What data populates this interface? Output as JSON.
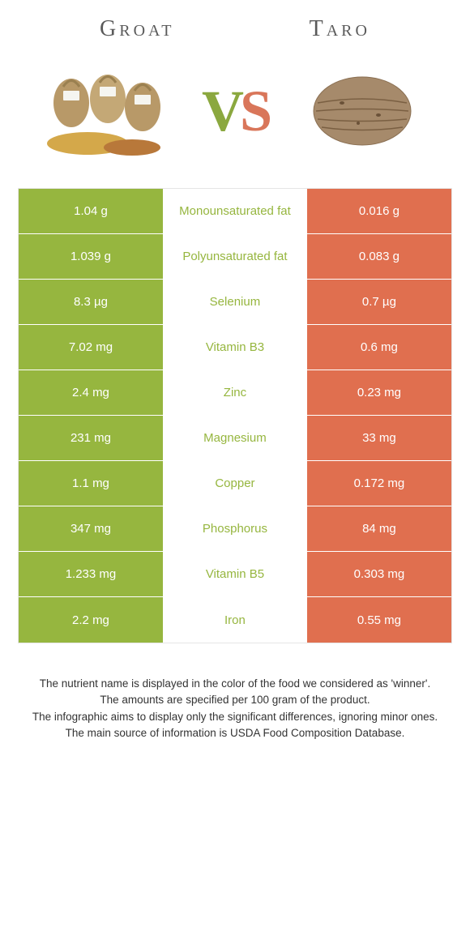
{
  "colors": {
    "left": "#96B63F",
    "right": "#E06F4F",
    "rowBorder": "#ffffff"
  },
  "foods": {
    "left": "Groat",
    "right": "Taro"
  },
  "vs": {
    "v": "V",
    "s": "S"
  },
  "rows": [
    {
      "left": "1.04 g",
      "label": "Monounsaturated fat",
      "right": "0.016 g",
      "winner": "left"
    },
    {
      "left": "1.039 g",
      "label": "Polyunsaturated fat",
      "right": "0.083 g",
      "winner": "left"
    },
    {
      "left": "8.3 µg",
      "label": "Selenium",
      "right": "0.7 µg",
      "winner": "left"
    },
    {
      "left": "7.02 mg",
      "label": "Vitamin B3",
      "right": "0.6 mg",
      "winner": "left"
    },
    {
      "left": "2.4 mg",
      "label": "Zinc",
      "right": "0.23 mg",
      "winner": "left"
    },
    {
      "left": "231 mg",
      "label": "Magnesium",
      "right": "33 mg",
      "winner": "left"
    },
    {
      "left": "1.1 mg",
      "label": "Copper",
      "right": "0.172 mg",
      "winner": "left"
    },
    {
      "left": "347 mg",
      "label": "Phosphorus",
      "right": "84 mg",
      "winner": "left"
    },
    {
      "left": "1.233 mg",
      "label": "Vitamin B5",
      "right": "0.303 mg",
      "winner": "left"
    },
    {
      "left": "2.2 mg",
      "label": "Iron",
      "right": "0.55 mg",
      "winner": "left"
    }
  ],
  "footer": [
    "The nutrient name is displayed in the color of the food we considered as 'winner'.",
    "The amounts are specified per 100 gram of the product.",
    "The infographic aims to display only the significant differences, ignoring minor ones.",
    "The main source of information is USDA Food Composition Database."
  ]
}
